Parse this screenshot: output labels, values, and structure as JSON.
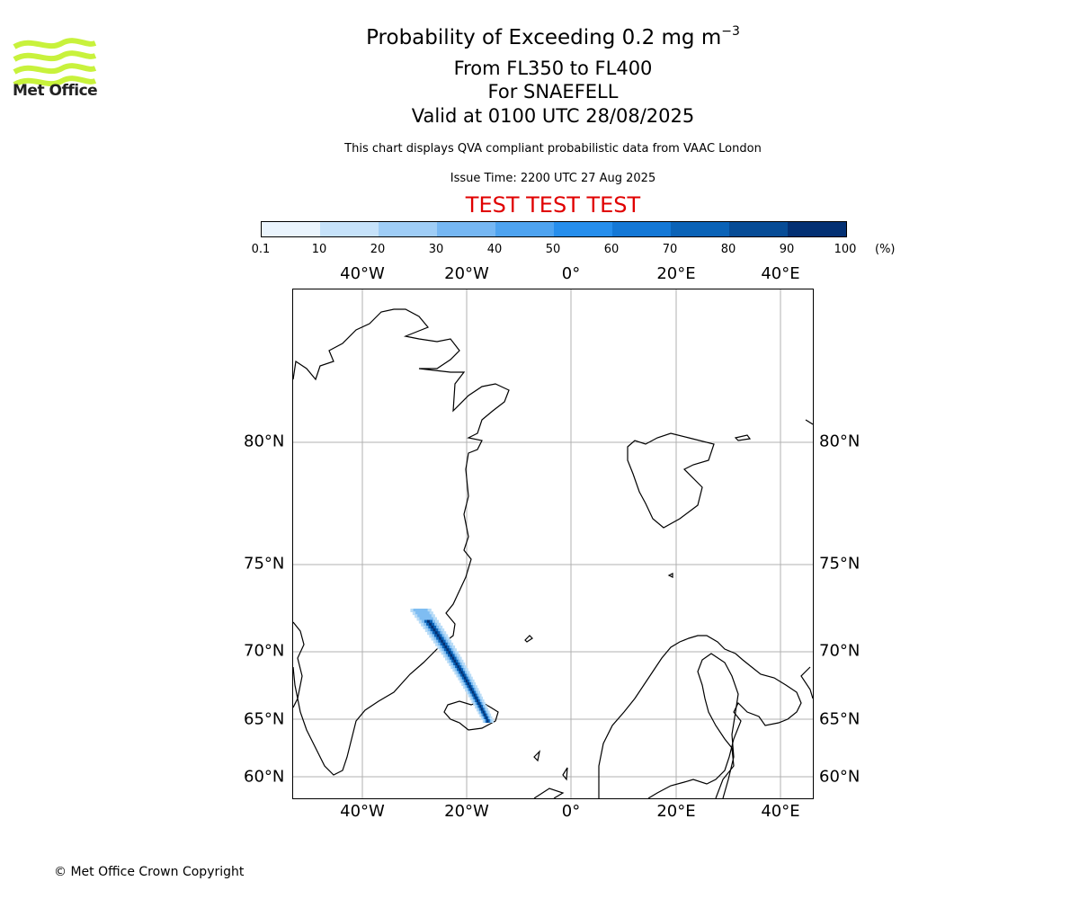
{
  "logo": {
    "text": "Met Office",
    "icon": "met-office-wave-logo",
    "color": "#c8f23c"
  },
  "title": {
    "main": "Probability of Exceeding 0.2 mg m",
    "superscript": "−3",
    "line2": "From FL350 to FL400",
    "line3": "For SNAEFELL",
    "line4": "Valid at 0100 UTC 28/08/2025"
  },
  "description": "This chart displays QVA compliant probabilistic data from VAAC London",
  "issue_time": "Issue Time: 2200 UTC 27 Aug 2025",
  "test_banner": {
    "text": "TEST TEST TEST",
    "color": "#e00000"
  },
  "colorbar": {
    "ticks": [
      "0.1",
      "10",
      "20",
      "30",
      "40",
      "50",
      "60",
      "70",
      "80",
      "90",
      "100"
    ],
    "unit": "(%)",
    "colors": [
      "#eaf4fd",
      "#c6e2fa",
      "#9fcdf6",
      "#76b7f3",
      "#4ea3f0",
      "#268eec",
      "#1478d6",
      "#0b63b7",
      "#074c96",
      "#033073"
    ]
  },
  "map": {
    "lon_labels": [
      "40°W",
      "20°W",
      "0°",
      "20°E",
      "40°E"
    ],
    "lat_labels": [
      "80°N",
      "75°N",
      "70°N",
      "65°N",
      "60°N"
    ],
    "plume_colors": [
      "#b9dcf7",
      "#7fbdf2",
      "#3d92e3",
      "#0b63b7",
      "#033073"
    ]
  },
  "copyright": "© Met Office Crown Copyright"
}
